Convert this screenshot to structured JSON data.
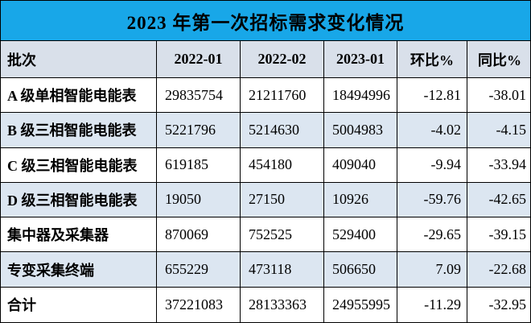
{
  "title": "2023 年第一次招标需求变化情况",
  "colors": {
    "title_bg": "#18a7e8",
    "header_bg": "#d9e0ea",
    "alt_row_bg": "#dce6f1",
    "row_bg": "#ffffff",
    "border": "#000000",
    "text": "#000000"
  },
  "chart_data": {
    "type": "table",
    "title": "2023 年第一次招标需求变化情况",
    "columns": [
      "批次",
      "2022-01",
      "2022-02",
      "2023-01",
      "环比%",
      "同比%"
    ],
    "rows": [
      {
        "label": "A 级单相智能电能表",
        "values": [
          "29835754",
          "21211760",
          "18494996",
          "-12.81",
          "-38.01"
        ]
      },
      {
        "label": "B 级三相智能电能表",
        "values": [
          "5221796",
          "5214630",
          "5004983",
          "-4.02",
          "-4.15"
        ]
      },
      {
        "label": "C 级三相智能电能表",
        "values": [
          "619185",
          "454180",
          "409040",
          "-9.94",
          "-33.94"
        ]
      },
      {
        "label": "D 级三相智能电能表",
        "values": [
          "19050",
          "27150",
          "10926",
          "-59.76",
          "-42.65"
        ]
      },
      {
        "label": "集中器及采集器",
        "values": [
          "870069",
          "752525",
          "529400",
          "-29.65",
          "-39.15"
        ]
      },
      {
        "label": "专变采集终端",
        "values": [
          "655229",
          "473118",
          "506650",
          "7.09",
          "-22.68"
        ]
      },
      {
        "label": "合计",
        "values": [
          "37221083",
          "28133363",
          "24955995",
          "-11.29",
          "-32.95"
        ]
      }
    ]
  }
}
